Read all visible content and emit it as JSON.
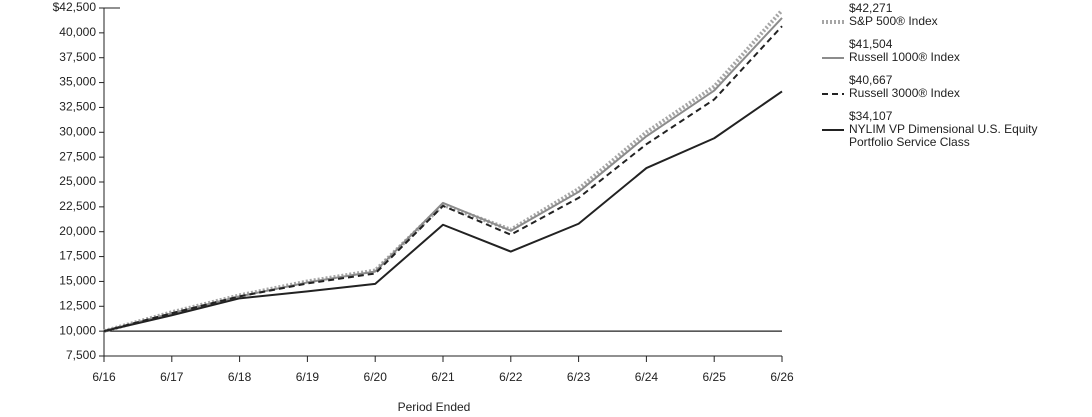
{
  "chart_data": {
    "type": "line",
    "x_label": "Period Ended",
    "categories": [
      "6/16",
      "6/17",
      "6/18",
      "6/19",
      "6/20",
      "6/21",
      "6/22",
      "6/23",
      "6/24",
      "6/25",
      "6/26"
    ],
    "ylim": [
      7500,
      42500
    ],
    "yticks": [
      {
        "value": 7500,
        "label": "7,500"
      },
      {
        "value": 10000,
        "label": "10,000"
      },
      {
        "value": 12500,
        "label": "12,500"
      },
      {
        "value": 15000,
        "label": "15,000"
      },
      {
        "value": 17500,
        "label": "17,500"
      },
      {
        "value": 20000,
        "label": "20,000"
      },
      {
        "value": 22500,
        "label": "22,500"
      },
      {
        "value": 25000,
        "label": "25,000"
      },
      {
        "value": 27500,
        "label": "27,500"
      },
      {
        "value": 30000,
        "label": "30,000"
      },
      {
        "value": 32500,
        "label": "32,500"
      },
      {
        "value": 35000,
        "label": "35,000"
      },
      {
        "value": 37500,
        "label": "37,500"
      },
      {
        "value": 40000,
        "label": "40,000"
      },
      {
        "value": 42500,
        "label": "$42,500"
      }
    ],
    "reference_line": 10000,
    "grid": false,
    "legend_position": "right",
    "series": [
      {
        "name": "S&P 500® Index",
        "end_label": "$42,271",
        "color": "#a6a6a6",
        "style": "dotted",
        "values": [
          10000,
          11900,
          13600,
          15000,
          16100,
          22700,
          20200,
          24300,
          30000,
          34600,
          42271
        ]
      },
      {
        "name": "Russell 1000® Index",
        "end_label": "$41,504",
        "color": "#8c8c8c",
        "style": "solid",
        "values": [
          10000,
          11800,
          13500,
          14900,
          16000,
          22900,
          20100,
          24000,
          29600,
          34200,
          41504
        ]
      },
      {
        "name": "Russell 3000® Index",
        "end_label": "$40,667",
        "color": "#222222",
        "style": "dashed",
        "values": [
          10000,
          11800,
          13500,
          14800,
          15800,
          22600,
          19700,
          23400,
          28800,
          33300,
          40667
        ]
      },
      {
        "name": "NYLIM VP Dimensional U.S. Equity Portfolio Service Class",
        "end_label": "$34,107",
        "color": "#222222",
        "style": "solid",
        "values": [
          10000,
          11600,
          13300,
          14000,
          14750,
          20700,
          18000,
          20800,
          26400,
          29400,
          34107
        ]
      }
    ]
  }
}
